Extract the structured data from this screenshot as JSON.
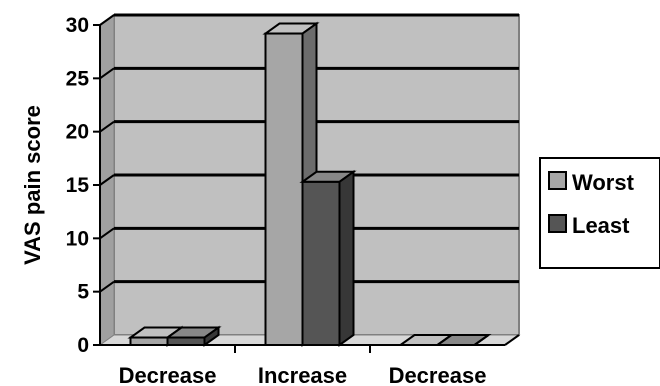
{
  "chart_data": {
    "type": "bar",
    "categories": [
      "Decrease",
      "Increase",
      "Decrease"
    ],
    "series": [
      {
        "name": "Worst",
        "values": [
          0.7,
          29.2,
          0.0
        ]
      },
      {
        "name": "Least",
        "values": [
          0.7,
          15.3,
          0.0
        ]
      }
    ],
    "ylabel": "VAS pain score",
    "xlabel": "",
    "ylim": [
      0,
      30
    ],
    "yticks": [
      0,
      5,
      10,
      15,
      20,
      25,
      30
    ],
    "grid": true,
    "legend": "right",
    "three_d": true
  },
  "colors": {
    "worst": "#a6a6a6",
    "least": "#555555",
    "wall": "#c0c0c0",
    "floor": "#d8d8d8"
  }
}
